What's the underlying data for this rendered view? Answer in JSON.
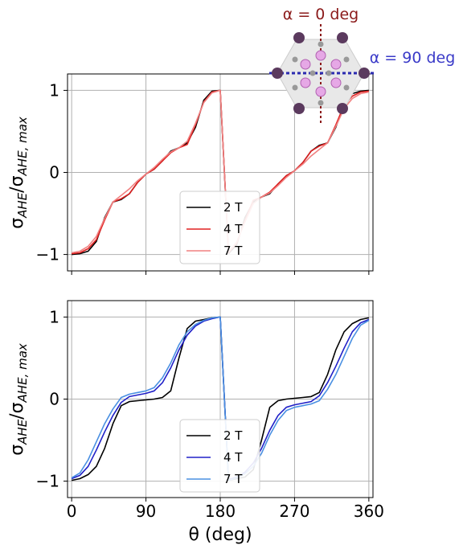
{
  "chart_data": [
    {
      "type": "line",
      "panel": "top",
      "ylabel": "σAHE/σAHE,max",
      "xlim": [
        -5,
        365
      ],
      "ylim": [
        -1.2,
        1.2
      ],
      "xticks": [
        0,
        90,
        180,
        270,
        360
      ],
      "yticks": [
        -1,
        0,
        1
      ],
      "grid": true,
      "legend": "lower-center",
      "annotations": [
        "α = 0 deg",
        "α = 90 deg"
      ],
      "annotation_colors": [
        "#8b1a1a",
        "#3a3ac8"
      ],
      "series": [
        {
          "name": "2 T",
          "color": "#000000",
          "x": [
            0,
            10,
            20,
            30,
            40,
            50,
            60,
            70,
            80,
            90,
            100,
            110,
            120,
            130,
            140,
            150,
            160,
            170,
            180
          ],
          "y": [
            -1.0,
            -0.99,
            -0.96,
            -0.84,
            -0.55,
            -0.36,
            -0.33,
            -0.26,
            -0.12,
            -0.02,
            0.04,
            0.14,
            0.26,
            0.3,
            0.36,
            0.55,
            0.88,
            0.99,
            1.0
          ]
        },
        {
          "name": "4 T",
          "color": "#e02020",
          "x": [
            0,
            10,
            20,
            30,
            40,
            50,
            60,
            70,
            80,
            90,
            100,
            110,
            120,
            130,
            140,
            150,
            160,
            170,
            180
          ],
          "y": [
            -0.99,
            -0.98,
            -0.93,
            -0.82,
            -0.58,
            -0.36,
            -0.32,
            -0.26,
            -0.12,
            -0.02,
            0.04,
            0.14,
            0.24,
            0.3,
            0.34,
            0.58,
            0.86,
            0.98,
            1.0
          ]
        },
        {
          "name": "7 T",
          "color": "#f08080",
          "x": [
            0,
            10,
            20,
            30,
            40,
            50,
            60,
            70,
            80,
            90,
            100,
            110,
            120,
            130,
            140,
            150,
            160,
            170,
            180
          ],
          "y": [
            -0.98,
            -0.96,
            -0.9,
            -0.78,
            -0.56,
            -0.36,
            -0.28,
            -0.2,
            -0.1,
            -0.02,
            0.06,
            0.16,
            0.25,
            0.3,
            0.38,
            0.6,
            0.85,
            0.97,
            1.0
          ]
        }
      ]
    },
    {
      "type": "line",
      "panel": "bottom",
      "xlabel": "θ (deg)",
      "ylabel": "σAHE/σAHE,max",
      "xlim": [
        -5,
        365
      ],
      "ylim": [
        -1.2,
        1.2
      ],
      "xticks": [
        0,
        90,
        180,
        270,
        360
      ],
      "yticks": [
        -1,
        0,
        1
      ],
      "grid": true,
      "legend": "lower-center",
      "series": [
        {
          "name": "2 T",
          "color": "#000000",
          "x": [
            0,
            10,
            20,
            30,
            40,
            50,
            60,
            70,
            80,
            90,
            100,
            110,
            120,
            130,
            140,
            150,
            160,
            170,
            180
          ],
          "y": [
            -0.99,
            -0.97,
            -0.92,
            -0.82,
            -0.6,
            -0.3,
            -0.08,
            -0.03,
            -0.02,
            -0.01,
            0.0,
            0.02,
            0.1,
            0.5,
            0.86,
            0.95,
            0.97,
            0.99,
            1.0
          ]
        },
        {
          "name": "4 T",
          "color": "#2020c8",
          "x": [
            0,
            10,
            20,
            30,
            40,
            50,
            60,
            70,
            80,
            90,
            100,
            110,
            120,
            130,
            140,
            150,
            160,
            170,
            180
          ],
          "y": [
            -0.97,
            -0.93,
            -0.82,
            -0.62,
            -0.4,
            -0.2,
            -0.04,
            0.03,
            0.05,
            0.07,
            0.1,
            0.2,
            0.38,
            0.6,
            0.78,
            0.89,
            0.95,
            0.98,
            1.0
          ]
        },
        {
          "name": "7 T",
          "color": "#4a90e2",
          "x": [
            0,
            10,
            20,
            30,
            40,
            50,
            60,
            70,
            80,
            90,
            100,
            110,
            120,
            130,
            140,
            150,
            160,
            170,
            180
          ],
          "y": [
            -0.96,
            -0.9,
            -0.74,
            -0.52,
            -0.3,
            -0.12,
            0.02,
            0.06,
            0.08,
            0.1,
            0.14,
            0.26,
            0.44,
            0.66,
            0.82,
            0.91,
            0.96,
            0.99,
            1.0
          ]
        }
      ]
    }
  ]
}
